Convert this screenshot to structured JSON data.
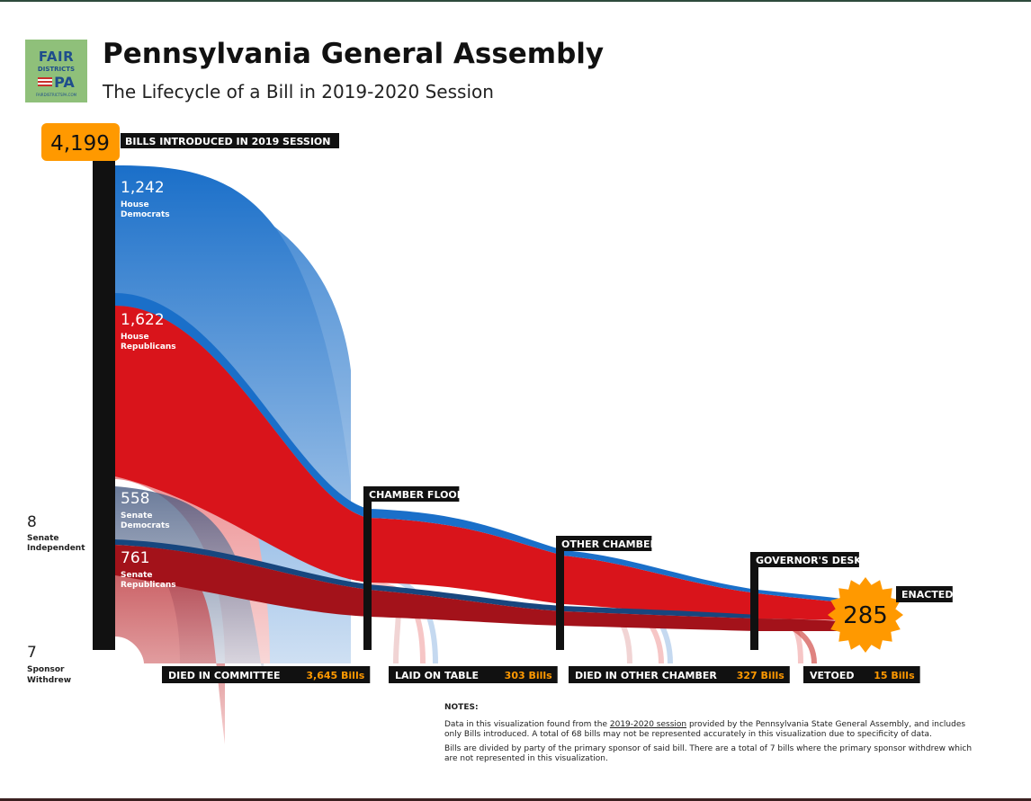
{
  "logo": {
    "line1": "FAIR",
    "line2": "DISTRICTS",
    "line3": "PA",
    "line4": "FAIRDISTRICTSPA.COM"
  },
  "header": {
    "title": "Pennsylvania General Assembly",
    "subtitle": "The Lifecycle of a Bill in 2019-2020 Session"
  },
  "chart_data": {
    "type": "sankey",
    "title": "Pennsylvania General Assembly",
    "subtitle": "The Lifecycle of a Bill in 2019-2020 Session",
    "total": {
      "value": "4,199",
      "label": "BILLS INTRODUCED IN 2019 SESSION"
    },
    "sources": [
      {
        "name": "House Democrats",
        "label_line1": "House",
        "label_line2": "Democrats",
        "value": 1242,
        "display": "1,242",
        "color": "#1a6fc9"
      },
      {
        "name": "House Republicans",
        "label_line1": "House",
        "label_line2": "Republicans",
        "value": 1622,
        "display": "1,622",
        "color": "#d9141b"
      },
      {
        "name": "Senate Democrats",
        "label_line1": "Senate",
        "label_line2": "Democrats",
        "value": 558,
        "display": "558",
        "color": "#17467e"
      },
      {
        "name": "Senate Republicans",
        "label_line1": "Senate",
        "label_line2": "Republicans",
        "value": 761,
        "display": "761",
        "color": "#a3121a"
      }
    ],
    "side_counts": [
      {
        "name": "Senate Independent",
        "label_line1": "Senate",
        "label_line2": "Independent",
        "value": 8,
        "display": "8"
      },
      {
        "name": "Sponsor Withdrew",
        "label_line1": "Sponsor",
        "label_line2": "Withdrew",
        "value": 7,
        "display": "7"
      }
    ],
    "stages": [
      {
        "name": "CHAMBER FLOOR"
      },
      {
        "name": "OTHER CHAMBER"
      },
      {
        "name": "GOVERNOR'S DESK"
      },
      {
        "name": "ENACTED",
        "value": 285,
        "display": "285"
      }
    ],
    "outcomes": [
      {
        "name": "DIED IN COMMITTEE",
        "value": 3645,
        "display": "3,645 Bills"
      },
      {
        "name": "LAID ON TABLE",
        "value": 303,
        "display": "303 Bills"
      },
      {
        "name": "DIED IN OTHER CHAMBER",
        "value": 327,
        "display": "327 Bills"
      },
      {
        "name": "VETOED",
        "value": 15,
        "display": "15 Bills"
      }
    ],
    "colors": {
      "accent": "#ff9900",
      "bar": "#111111",
      "tag_text": "#ffffff"
    }
  },
  "notes": {
    "heading": "NOTES:",
    "p1_a": "Data in this visualization found from the ",
    "p1_link": "2019-2020 session",
    "p1_b": " provided by the Pennsylvania State General Assembly, and includes only Bills introduced. A total of 68 bills may not be represented accurately in this visualization due to specificity of data.",
    "p2": "Bills are divided by party of the primary sponsor of said bill. There are a total of 7 bills where the primary sponsor withdrew which are not represented in this visualization."
  }
}
